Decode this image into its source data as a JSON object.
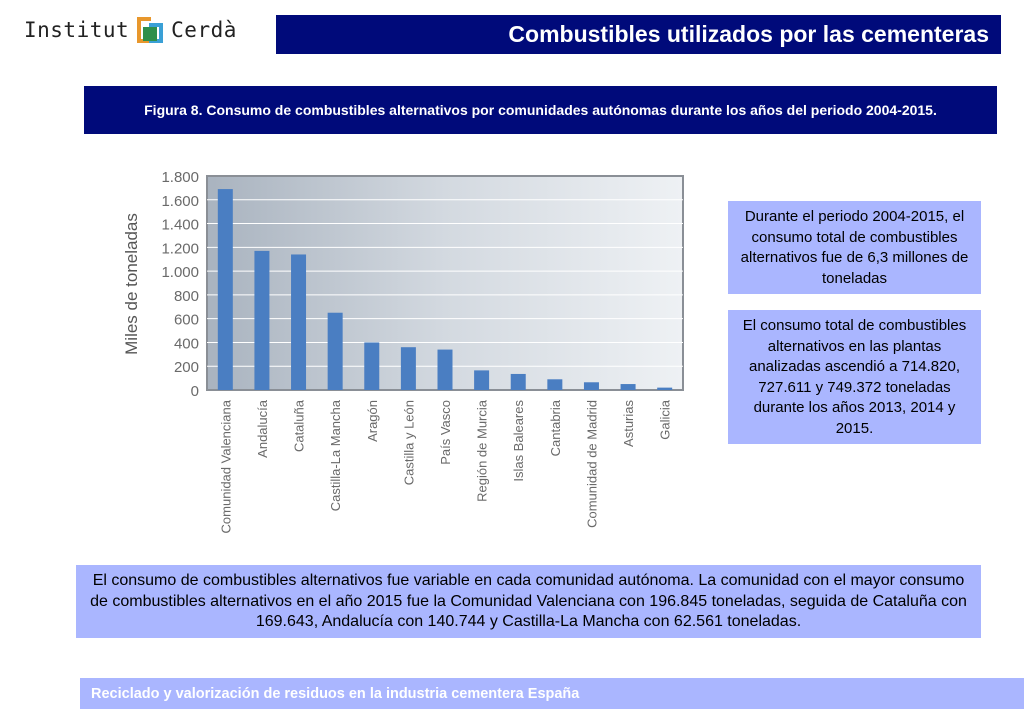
{
  "logo": {
    "left_text": "Institut",
    "right_text": "Cerdà",
    "colors": {
      "orange": "#e8972c",
      "blue": "#3aa0d6",
      "green": "#2f8f4a"
    }
  },
  "header": {
    "title": "Combustibles utilizados por las cementeras"
  },
  "figure_caption": "Figura 8. Consumo de combustibles alternativos por comunidades autónomas durante los años del periodo 2004-2015.",
  "info_boxes": [
    "Durante el periodo 2004-2015, el consumo total de combustibles alternativos fue de 6,3 millones de toneladas",
    "El consumo total de combustibles alternativos en las plantas analizadas ascendió a 714.820, 727.611 y 749.372 toneladas durante los años 2013, 2014 y 2015."
  ],
  "bottom_text": "El consumo de combustibles alternativos fue variable en cada comunidad autónoma. La comunidad con el mayor consumo de combustibles alternativos en el año 2015 fue la Comunidad Valenciana con 196.845 toneladas, seguida de Cataluña con 169.643, Andalucía con 140.744 y Castilla-La Mancha con 62.561 toneladas.",
  "footer": {
    "text": "Reciclado y valorización de residuos en la industria cementera España"
  },
  "colors": {
    "navy": "#000a7a",
    "lavender": "#aab6ff",
    "bar": "#4a7ec2"
  },
  "chart_data": {
    "type": "bar",
    "title": "",
    "xlabel": "",
    "ylabel": "Miles de toneladas",
    "categories": [
      "Comunidad Valenciana",
      "Andalucía",
      "Cataluña",
      "Castilla-La Mancha",
      "Aragón",
      "Castilla y León",
      "País Vasco",
      "Región de Murcia",
      "Islas Baleares",
      "Cantabria",
      "Comunidad de Madrid",
      "Asturias",
      "Galicia"
    ],
    "values": [
      1690,
      1170,
      1140,
      650,
      400,
      360,
      340,
      165,
      135,
      90,
      65,
      50,
      20
    ],
    "ylim": [
      0,
      1800
    ],
    "yticks": [
      0,
      200,
      400,
      600,
      800,
      1000,
      1200,
      1400,
      1600,
      1800
    ],
    "ytick_labels": [
      "0",
      "200",
      "400",
      "600",
      "800",
      "1.000",
      "1.200",
      "1.400",
      "1.600",
      "1.800"
    ],
    "grid": true,
    "legend": "none"
  }
}
